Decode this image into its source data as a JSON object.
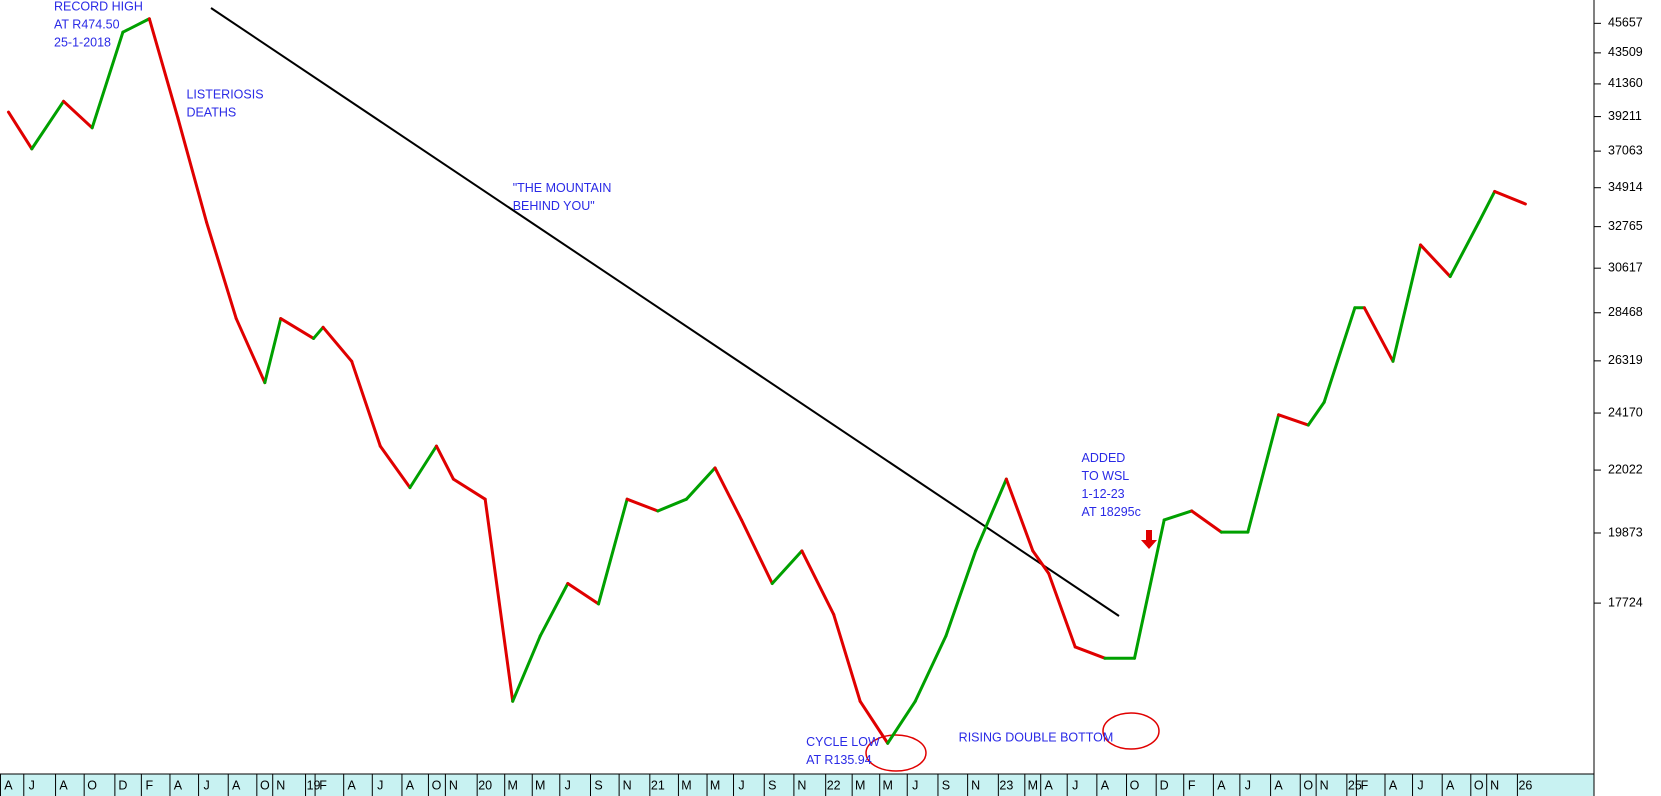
{
  "chart_data": {
    "type": "line",
    "categories": [
      "A",
      "J",
      "A",
      "O",
      "D",
      "F",
      "A",
      "J",
      "A",
      "O",
      "N",
      "19",
      "F",
      "A",
      "J",
      "A",
      "O",
      "N",
      "20",
      "M",
      "M",
      "J",
      "S",
      "N",
      "21",
      "M",
      "M",
      "J",
      "S",
      "N",
      "22",
      "M",
      "M",
      "J",
      "S",
      "N",
      "23",
      "M",
      "A",
      "J",
      "A",
      "O",
      "D",
      "F",
      "A",
      "J",
      "A",
      "O",
      "N",
      "25",
      "F",
      "A",
      "J",
      "A",
      "O",
      "N",
      "26"
    ],
    "values": [
      39500,
      37200,
      40200,
      38500,
      45000,
      46000,
      39100,
      33000,
      28200,
      25400,
      28200,
      27300,
      27800,
      26300,
      22900,
      21400,
      22900,
      21700,
      21000,
      15100,
      16800,
      18300,
      17700,
      21000,
      20600,
      21000,
      22100,
      20300,
      18300,
      19300,
      17400,
      15100,
      14100,
      15100,
      16800,
      19300,
      21700,
      19300,
      18600,
      16500,
      16200,
      16200,
      20300,
      20600,
      19900,
      19900,
      24100,
      23700,
      24600,
      28700,
      28700,
      26300,
      31800,
      30200,
      33000,
      34700,
      34000
    ],
    "up_color": "#00a000",
    "down_color": "#e00000",
    "log_scale": true,
    "ylim": [
      13410,
      47430
    ],
    "yticks": [
      17724,
      19873,
      22022,
      24170,
      26319,
      28468,
      30617,
      32765,
      34914,
      37063,
      39211,
      41360,
      43509,
      45657
    ],
    "annotations": [
      [
        "RECORD HIGH",
        "AT R474.50",
        "25-1-2018"
      ],
      [
        "LISTERIOSIS",
        "DEATHS"
      ],
      [
        "\"THE MOUNTAIN",
        "BEHIND YOU\""
      ],
      [
        "ADDED",
        "TO WSL",
        "1-12-23",
        "AT 18295c"
      ],
      [
        "CYCLE LOW",
        "AT R135.94"
      ],
      [
        "RISING DOUBLE BOTTOM"
      ]
    ]
  }
}
